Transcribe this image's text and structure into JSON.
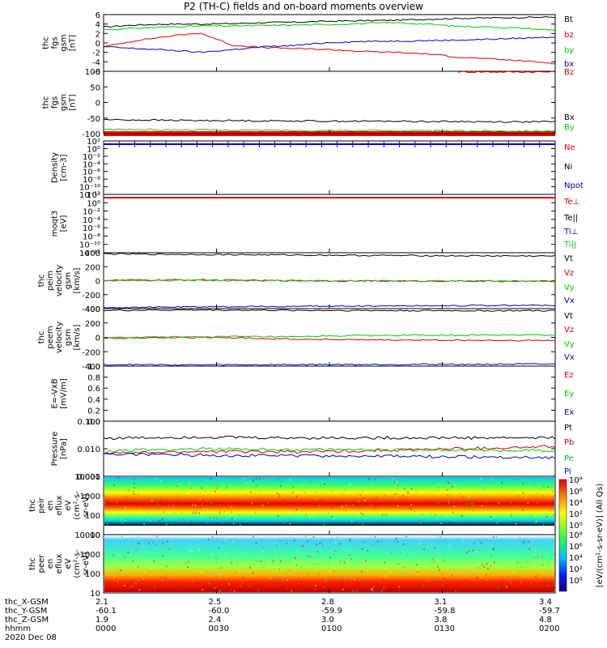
{
  "title": "P2 (TH-C) fields and on-board moments overview",
  "colors": {
    "black": "#000000",
    "red": "#dd0000",
    "green": "#00cc00",
    "blue": "#0000cc"
  },
  "chart_data": {
    "type": "line",
    "x": {
      "start_hhmm": "0000",
      "end_hhmm": "0200",
      "tick_labels": [
        "0000",
        "0030",
        "0100",
        "0130",
        "0200"
      ]
    },
    "panels": [
      {
        "id": "fgs",
        "ylabel": [
          "thc",
          "fgs",
          "gsm",
          "[nT]"
        ],
        "ylim": [
          -6,
          6
        ],
        "ticks": [
          "6",
          "4",
          "2",
          "0",
          "-2",
          "-4",
          "-6"
        ],
        "series": [
          {
            "name": "Bt",
            "color": "black",
            "values": [
              3.4,
              3.8,
              4.0,
              4.0,
              4.1,
              4.3,
              4.4,
              4.6,
              4.7,
              4.8,
              5.0,
              5.2,
              5.3,
              5.4,
              5.5
            ]
          },
          {
            "name": "bz",
            "color": "red",
            "values": [
              -0.8,
              0.5,
              1.4,
              2.1,
              -0.5,
              -1.0,
              -1.2,
              -1.4,
              -1.8,
              -2.0,
              -2.3,
              -3.0,
              -3.4,
              -3.8,
              -4.3
            ]
          },
          {
            "name": "by",
            "color": "green",
            "values": [
              2.8,
              3.1,
              3.4,
              3.6,
              3.6,
              3.7,
              3.8,
              3.9,
              4.1,
              4.3,
              4.0,
              3.5,
              3.4,
              3.1,
              2.7
            ]
          },
          {
            "name": "bx",
            "color": "blue",
            "values": [
              -0.8,
              -1.2,
              -1.5,
              -2.0,
              -1.4,
              -0.8,
              -0.5,
              0.1,
              0.3,
              0.4,
              0.5,
              0.6,
              0.8,
              1.0,
              1.3
            ]
          }
        ]
      },
      {
        "id": "fgs_dsl",
        "ylabel": [
          "thc",
          "fgs",
          "gsm",
          "[nT]"
        ],
        "ylim": [
          -100,
          100
        ],
        "ticks": [
          "100",
          "50",
          "0",
          "-50",
          "-100"
        ],
        "series": [
          {
            "name": "Bz",
            "color": "red",
            "values": [
              null,
              null,
              null,
              null,
              null,
              null,
              null,
              null,
              null,
              null,
              null,
              98,
              98,
              98,
              98
            ]
          },
          {
            "name": "Bx",
            "color": "black",
            "values": [
              -55,
              -56,
              -57,
              -58,
              -58,
              -59,
              -59,
              -60,
              -60,
              -60,
              -61,
              -61,
              -62,
              -62,
              -62
            ]
          },
          {
            "name": "By",
            "color": "green",
            "values": [
              -86,
              -87,
              -88,
              -88,
              -89,
              -89,
              -90,
              -90,
              -90,
              -90,
              -91,
              -91,
              -91,
              -91,
              -91
            ]
          }
        ]
      },
      {
        "id": "density",
        "ylabel": [
          "Density",
          "[cm-3]"
        ],
        "ticks": [
          "10²",
          "10⁰",
          "10⁻²",
          "10⁻⁴",
          "10⁻⁶",
          "10⁻⁸",
          "10⁻¹⁰",
          "10⁻¹²"
        ],
        "series": [
          {
            "name": "Ne",
            "color": "red"
          },
          {
            "name": "Ni",
            "color": "black"
          },
          {
            "name": "Npot",
            "color": "blue"
          }
        ]
      },
      {
        "id": "temp",
        "ylabel": [
          "moqt3",
          "[eV]"
        ],
        "ticks": [
          "10²",
          "10⁰",
          "10⁻²",
          "10⁻⁴",
          "10⁻⁶",
          "10⁻⁸",
          "10⁻¹⁰",
          "10⁻¹²"
        ],
        "series": [
          {
            "name": "Te⊥",
            "color": "red"
          },
          {
            "name": "Te||",
            "color": "black"
          },
          {
            "name": "Ti⊥",
            "color": "blue"
          },
          {
            "name": "Ti||",
            "color": "green"
          }
        ]
      },
      {
        "id": "peim",
        "ylabel": [
          "thc",
          "peim",
          "velocity",
          "gsm",
          "[km/s]"
        ],
        "ylim": [
          -400,
          400
        ],
        "ticks": [
          "400",
          "200",
          "0",
          "-200",
          "-400"
        ],
        "series": [
          {
            "name": "Vt",
            "color": "black",
            "values": [
              385,
              380,
              378,
              375,
              372,
              370,
              368,
              365,
              362,
              360,
              358,
              356,
              355,
              354,
              352
            ]
          },
          {
            "name": "Vz",
            "color": "red",
            "values": [
              5,
              8,
              10,
              12,
              6,
              2,
              0,
              -2,
              -4,
              -5,
              -6,
              -6,
              -7,
              -8,
              -8
            ]
          },
          {
            "name": "Vy",
            "color": "green",
            "values": [
              0,
              2,
              4,
              6,
              3,
              0,
              -2,
              -3,
              -4,
              -4,
              -5,
              -5,
              -6,
              -6,
              -6
            ]
          },
          {
            "name": "Vx",
            "color": "blue",
            "values": [
              -385,
              -382,
              -378,
              -375,
              -372,
              -370,
              -368,
              -365,
              -362,
              -360,
              -358,
              -356,
              -355,
              -354,
              -352
            ]
          }
        ]
      },
      {
        "id": "peem",
        "ylabel": [
          "thc",
          "peem",
          "velocity",
          "gsm",
          "[km/s]"
        ],
        "ylim": [
          -400,
          400
        ],
        "ticks": [
          "400",
          "200",
          "0",
          "-200",
          "-400"
        ],
        "series": [
          {
            "name": "Vt",
            "color": "black",
            "values": [
              375,
              378,
              380,
              382,
              380,
              378,
              376,
              375,
              374,
              373,
              372,
              372,
              371,
              371,
              370
            ]
          },
          {
            "name": "Vz",
            "color": "red",
            "values": [
              -10,
              -8,
              -5,
              0,
              -5,
              -15,
              -25,
              -30,
              -35,
              -38,
              -40,
              -42,
              -42,
              -44,
              -45
            ]
          },
          {
            "name": "Vy",
            "color": "green",
            "values": [
              -5,
              0,
              5,
              8,
              10,
              8,
              5,
              20,
              25,
              28,
              30,
              30,
              32,
              32,
              33
            ]
          },
          {
            "name": "Vx",
            "color": "blue",
            "values": [
              -378,
              -380,
              -382,
              -383,
              -381,
              -380,
              -379,
              -378,
              -377,
              -376,
              -375,
              -374,
              -374,
              -373,
              -373
            ]
          }
        ]
      },
      {
        "id": "efield",
        "ylabel": [
          "E=-VxB",
          "[mV/m]"
        ],
        "ylim": [
          0,
          1
        ],
        "ticks": [
          "1.0",
          "0.8",
          "0.6",
          "0.4",
          "0.2",
          "0.0"
        ],
        "series": [
          {
            "name": "Ez",
            "color": "red"
          },
          {
            "name": "Ey",
            "color": "green"
          },
          {
            "name": "Ex",
            "color": "blue"
          }
        ]
      },
      {
        "id": "pressure",
        "ylabel": [
          "Pressure",
          "[nPa]"
        ],
        "scale": "log",
        "ylim": [
          0.001,
          0.1
        ],
        "ticks": [
          "0.100",
          "0.010",
          "0.001"
        ],
        "series": [
          {
            "name": "Pt",
            "color": "black",
            "values": [
              0.024,
              0.025,
              0.026,
              0.027,
              0.026,
              0.025,
              0.025,
              0.025,
              0.025,
              0.025,
              0.025,
              0.025,
              0.025,
              0.025,
              0.025
            ]
          },
          {
            "name": "Pb",
            "color": "red",
            "values": [
              0.007,
              0.007,
              0.0075,
              0.008,
              0.008,
              0.0078,
              0.0078,
              0.008,
              0.0085,
              0.009,
              0.0095,
              0.01,
              0.0105,
              0.011,
              0.012
            ]
          },
          {
            "name": "Pe",
            "color": "green",
            "values": [
              0.008,
              0.009,
              0.0095,
              0.01,
              0.0098,
              0.0095,
              0.0093,
              0.0092,
              0.0092,
              0.0092,
              0.009,
              0.009,
              0.0088,
              0.0088,
              0.0087
            ]
          },
          {
            "name": "Pi",
            "color": "blue",
            "values": [
              0.0065,
              0.0063,
              0.0062,
              0.006,
              0.0058,
              0.0057,
              0.0056,
              0.0055,
              0.0054,
              0.0053,
              0.0052,
              0.0051,
              0.005,
              0.0049,
              0.0048
            ]
          }
        ]
      },
      {
        "id": "peir_spec",
        "ylabel": [
          "thc",
          "peir",
          "en",
          "eflux",
          "eV",
          "(cm²-s-",
          "sr-eV)"
        ],
        "ticks": [
          "10000",
          "1000",
          "100",
          "10"
        ]
      },
      {
        "id": "peer_spec",
        "ylabel": [
          "thc",
          "peer",
          "en",
          "eflux",
          "eV",
          "(cm²-s-",
          "sr-eV)"
        ],
        "ticks": [
          "10000",
          "1000",
          "100",
          "10"
        ]
      }
    ],
    "colorbar": {
      "label": "[eV/(cm²-s-sr-eV)] (All Qs)",
      "top_ticks": [
        "10⁸",
        "10⁶",
        "10⁴",
        "10²",
        "10⁰"
      ],
      "bottom_ticks": [
        "10⁸",
        "10⁶",
        "10⁴",
        "10²",
        "10⁰"
      ]
    },
    "footer": {
      "rows": [
        {
          "label": "thc_X-GSM",
          "values": [
            "2.1",
            "2.5",
            "2.8",
            "3.1",
            "3.4"
          ]
        },
        {
          "label": "thc_Y-GSM",
          "values": [
            "-60.1",
            "-60.0",
            "-59.9",
            "-59.8",
            "-59.7"
          ]
        },
        {
          "label": "thc_Z-GSM",
          "values": [
            "1.9",
            "2.4",
            "3.0",
            "3.8",
            "4.8"
          ]
        },
        {
          "label": "hhmm",
          "values": [
            "0000",
            "0030",
            "0100",
            "0130",
            "0200"
          ]
        }
      ],
      "date": "2020 Dec 08"
    }
  }
}
